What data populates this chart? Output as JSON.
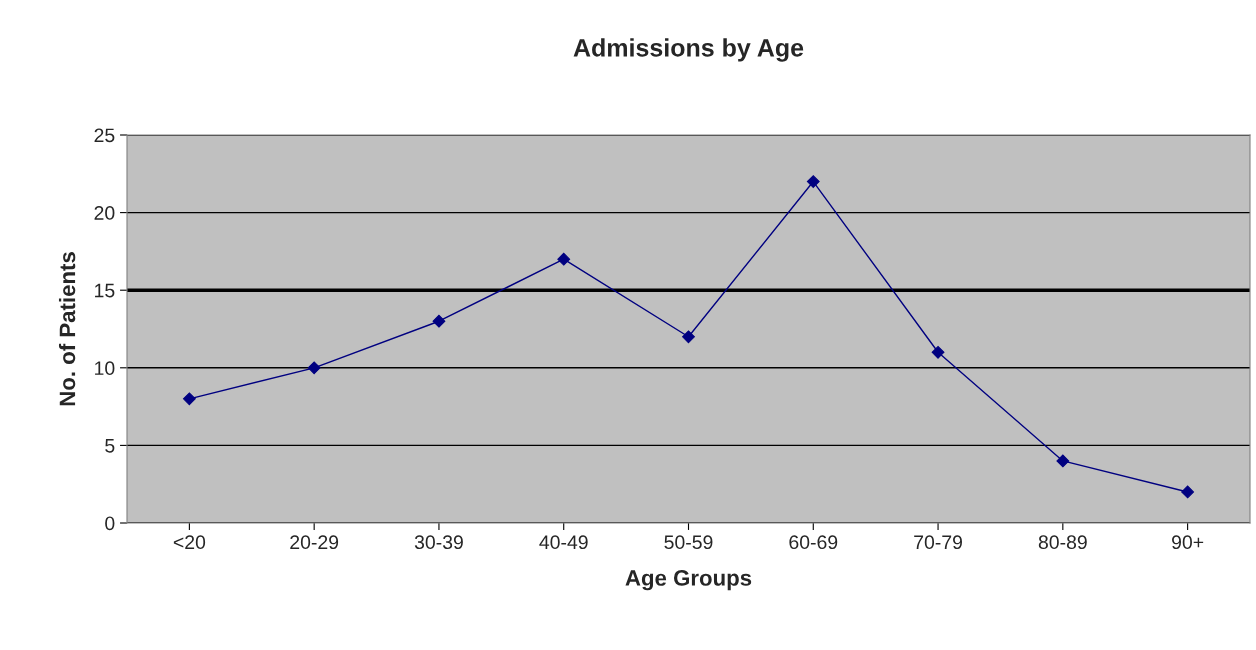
{
  "chart_data": {
    "type": "line",
    "title": "Admissions by Age",
    "xlabel": "Age Groups",
    "ylabel": "No. of Patients",
    "categories": [
      "<20",
      "20-29",
      "30-39",
      "40-49",
      "50-59",
      "60-69",
      "70-79",
      "80-89",
      "90+"
    ],
    "series": [
      {
        "color": "#000080",
        "values": [
          8,
          10,
          13,
          17,
          12,
          22,
          11,
          4,
          2
        ]
      }
    ],
    "ylim": [
      0,
      25
    ],
    "yticks": [
      0,
      5,
      10,
      15,
      20,
      25
    ],
    "grid": "y",
    "marker": "diamond",
    "line_style": "solid",
    "ref_lines": [
      {
        "axis": "y",
        "value": 15,
        "color": "#000000"
      }
    ]
  }
}
